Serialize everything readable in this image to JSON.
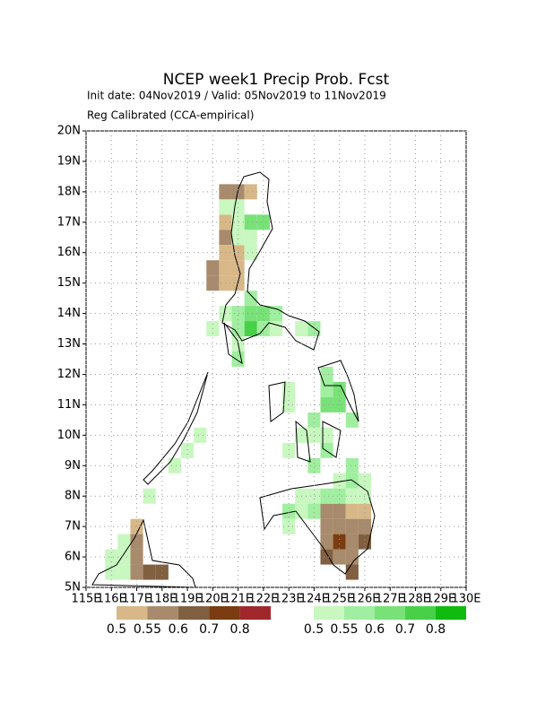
{
  "map": {
    "title": "NCEP week1 Precip Prob. Fcst",
    "subtitle": "Init date: 04Nov2019 / Valid: 05Nov2019 to 11Nov2019",
    "note": "Reg Calibrated (CCA-empirical)",
    "xlim": [
      115,
      130
    ],
    "ylim": [
      5,
      20
    ],
    "cell_size": 0.5,
    "grid": true,
    "xticks": [
      {
        "value": 115,
        "label": "115E"
      },
      {
        "value": 116,
        "label": "116E"
      },
      {
        "value": 117,
        "label": "117E"
      },
      {
        "value": 118,
        "label": "118E"
      },
      {
        "value": 119,
        "label": "119E"
      },
      {
        "value": 120,
        "label": "120E"
      },
      {
        "value": 121,
        "label": "121E"
      },
      {
        "value": 122,
        "label": "122E"
      },
      {
        "value": 123,
        "label": "123E"
      },
      {
        "value": 124,
        "label": "124E"
      },
      {
        "value": 125,
        "label": "125E"
      },
      {
        "value": 126,
        "label": "126E"
      },
      {
        "value": 127,
        "label": "127E"
      },
      {
        "value": 128,
        "label": "128E"
      },
      {
        "value": 129,
        "label": "129E"
      },
      {
        "value": 130,
        "label": "130E"
      }
    ],
    "yticks": [
      {
        "value": 5,
        "label": "5N"
      },
      {
        "value": 6,
        "label": "6N"
      },
      {
        "value": 7,
        "label": "7N"
      },
      {
        "value": 8,
        "label": "8N"
      },
      {
        "value": 9,
        "label": "9N"
      },
      {
        "value": 10,
        "label": "10N"
      },
      {
        "value": 11,
        "label": "11N"
      },
      {
        "value": 12,
        "label": "12N"
      },
      {
        "value": 13,
        "label": "13N"
      },
      {
        "value": 14,
        "label": "14N"
      },
      {
        "value": 15,
        "label": "15N"
      },
      {
        "value": 16,
        "label": "16N"
      },
      {
        "value": 17,
        "label": "17N"
      },
      {
        "value": 18,
        "label": "18N"
      },
      {
        "value": 19,
        "label": "19N"
      },
      {
        "value": 20,
        "label": "20N"
      }
    ],
    "colorbar_dry": {
      "colors": [
        "#d8b888",
        "#a88a6c",
        "#806040",
        "#7a3c10",
        "#a0282d"
      ],
      "labels": [
        0.5,
        0.55,
        0.6,
        0.7,
        0.8
      ]
    },
    "colorbar_wet": {
      "colors": [
        "#c8f7c0",
        "#a0eea0",
        "#78e278",
        "#48d048",
        "#10bb10"
      ],
      "labels": [
        0.5,
        0.55,
        0.6,
        0.7,
        0.8
      ]
    },
    "cells_dry": [
      [
        120.5,
        18,
        1
      ],
      [
        121,
        18,
        1
      ],
      [
        121.5,
        18,
        0
      ],
      [
        120.5,
        17,
        0
      ],
      [
        120.5,
        16.5,
        1
      ],
      [
        120.5,
        16,
        0
      ],
      [
        121,
        16,
        0
      ],
      [
        120,
        15.5,
        1
      ],
      [
        120.5,
        15.5,
        0
      ],
      [
        121,
        15.5,
        0
      ],
      [
        120,
        15,
        1
      ],
      [
        120.5,
        15,
        0
      ],
      [
        121,
        15,
        0
      ],
      [
        124.5,
        7.5,
        1
      ],
      [
        125,
        7.5,
        1
      ],
      [
        125.5,
        7.5,
        0
      ],
      [
        126,
        7.5,
        0
      ],
      [
        124.5,
        7,
        1
      ],
      [
        125,
        7,
        1
      ],
      [
        125.5,
        7,
        1
      ],
      [
        126,
        7,
        1
      ],
      [
        124.5,
        6.5,
        1
      ],
      [
        125,
        6.5,
        3
      ],
      [
        125.5,
        6.5,
        1
      ],
      [
        126,
        6.5,
        2
      ],
      [
        124.5,
        6,
        2
      ],
      [
        125,
        6,
        1
      ],
      [
        125.5,
        6,
        1
      ],
      [
        125.5,
        5.5,
        2
      ],
      [
        117,
        7,
        0
      ],
      [
        117,
        6.5,
        1
      ],
      [
        117,
        6,
        1
      ],
      [
        117,
        5.5,
        1
      ],
      [
        117.5,
        5.5,
        2
      ],
      [
        118,
        5.5,
        2
      ]
    ],
    "cells_wet": [
      [
        120.5,
        17.5,
        0
      ],
      [
        121,
        17.5,
        0
      ],
      [
        121,
        17,
        0
      ],
      [
        121.5,
        17,
        2
      ],
      [
        122,
        17,
        2
      ],
      [
        121,
        16.5,
        0
      ],
      [
        121.5,
        16.5,
        0
      ],
      [
        121.5,
        16,
        0
      ],
      [
        121.5,
        14.5,
        1
      ],
      [
        120.5,
        14,
        0
      ],
      [
        121,
        14,
        1
      ],
      [
        121.5,
        14,
        2
      ],
      [
        122,
        14,
        2
      ],
      [
        122.5,
        14,
        1
      ],
      [
        120,
        13.5,
        0
      ],
      [
        121,
        13.5,
        1
      ],
      [
        121.5,
        13.5,
        3
      ],
      [
        122,
        13.5,
        1
      ],
      [
        122.5,
        13.5,
        0
      ],
      [
        123.5,
        13.5,
        0
      ],
      [
        124,
        13.5,
        1
      ],
      [
        121,
        13,
        0
      ],
      [
        121,
        12.5,
        1
      ],
      [
        124.5,
        12,
        1
      ],
      [
        123,
        11.5,
        0
      ],
      [
        123,
        11,
        0
      ],
      [
        124.5,
        11.5,
        1
      ],
      [
        125,
        11.5,
        2
      ],
      [
        124.5,
        11,
        2
      ],
      [
        125,
        11,
        2
      ],
      [
        124,
        10.5,
        1
      ],
      [
        125.5,
        10.5,
        1
      ],
      [
        123.5,
        10,
        0
      ],
      [
        124,
        10,
        0
      ],
      [
        124.5,
        10,
        0
      ],
      [
        123,
        9.5,
        0
      ],
      [
        124.5,
        9.5,
        1
      ],
      [
        124,
        9,
        1
      ],
      [
        125.5,
        9,
        1
      ],
      [
        125,
        8.5,
        0
      ],
      [
        125.5,
        8.5,
        1
      ],
      [
        126,
        8.5,
        0
      ],
      [
        123.5,
        8,
        0
      ],
      [
        124,
        8,
        0
      ],
      [
        124.5,
        8,
        1
      ],
      [
        125,
        8,
        1
      ],
      [
        125.5,
        8,
        0
      ],
      [
        126,
        8,
        0
      ],
      [
        123,
        7.5,
        1
      ],
      [
        123.5,
        7.5,
        0
      ],
      [
        124,
        7.5,
        1
      ],
      [
        123,
        7,
        0
      ],
      [
        116.5,
        6.5,
        0
      ],
      [
        116,
        6,
        0
      ],
      [
        116.5,
        6,
        0
      ],
      [
        116,
        5.5,
        0
      ],
      [
        116.5,
        5.5,
        0
      ],
      [
        117.5,
        8,
        0
      ],
      [
        118.5,
        9,
        0
      ],
      [
        119,
        9.5,
        0
      ],
      [
        119.5,
        10,
        0
      ]
    ]
  }
}
